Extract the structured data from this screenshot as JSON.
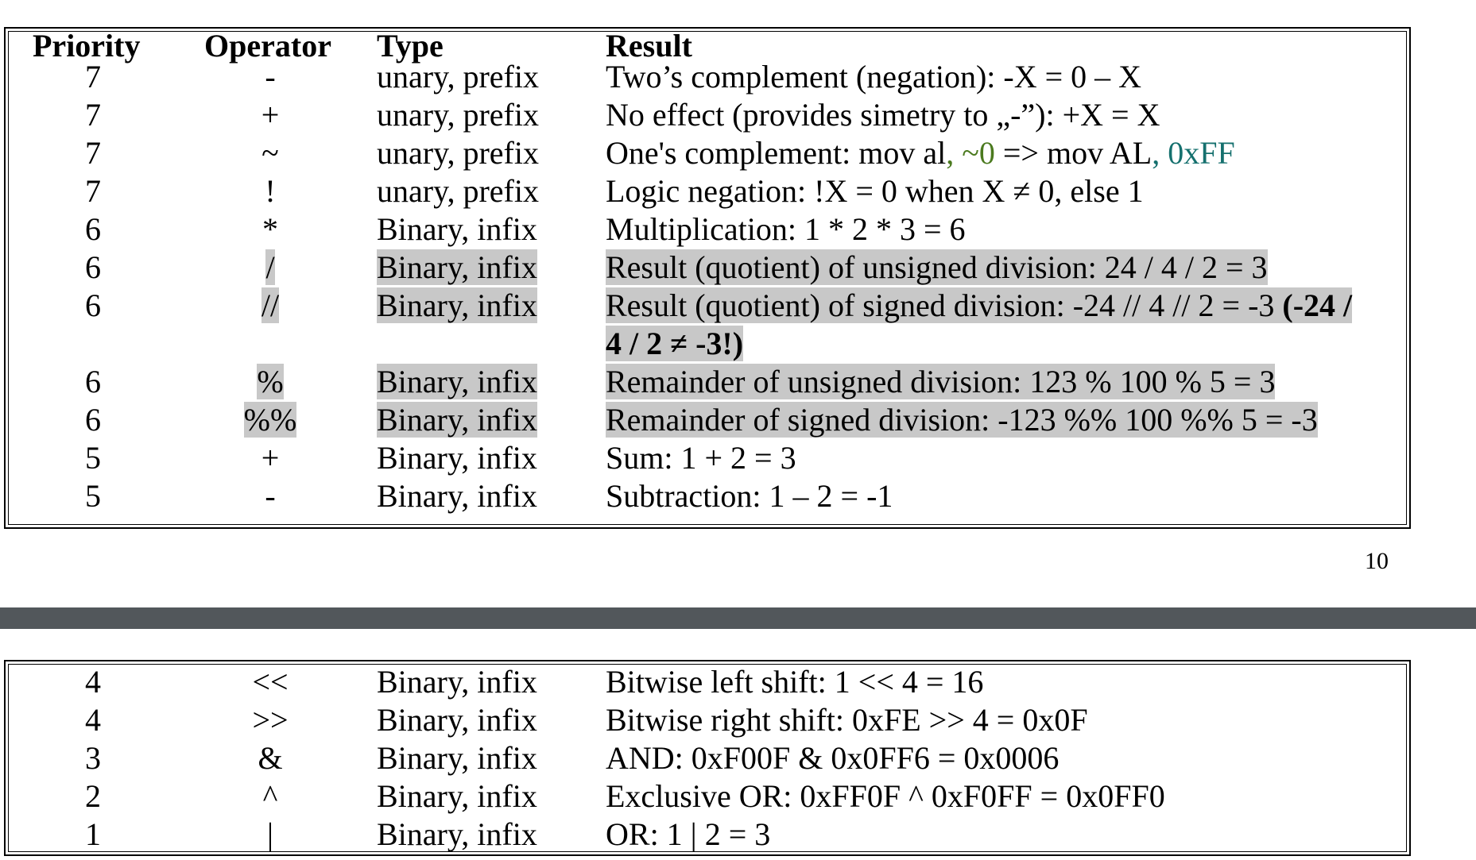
{
  "table": {
    "headers": {
      "priority": "Priority",
      "operator": "Operator",
      "type": "Type",
      "result": "Result"
    },
    "rows_page1": [
      {
        "priority": "7",
        "operator": "-",
        "type": "unary, prefix",
        "result": "Two’s complement (negation): -X = 0 – X"
      },
      {
        "priority": "7",
        "operator": "+",
        "type": "unary, prefix",
        "result": "No effect (provides simetry to „-”): +X = X"
      },
      {
        "priority": "7",
        "operator": "~",
        "type": "unary, prefix",
        "result_parts": [
          "One's complement: mov al",
          ", ~0",
          " => mov AL",
          ", 0xFF"
        ]
      },
      {
        "priority": "7",
        "operator": "!",
        "type": "unary, prefix",
        "result": "Logic negation: !X = 0 when X ≠ 0, else 1"
      },
      {
        "priority": "6",
        "operator": "*",
        "type": "Binary, infix",
        "result": "Multiplication: 1 * 2 * 3 = 6"
      },
      {
        "priority": "6",
        "operator": "/",
        "type": "Binary, infix",
        "result": "Result (quotient) of unsigned division: 24 / 4 / 2 = 3"
      },
      {
        "priority": "6",
        "operator": "//",
        "type": "Binary, infix",
        "result_line1": "Result (quotient) of signed division: -24 // 4 // 2 = -3 ",
        "result_line1_bold": "(-24 /",
        "result_line2_bold": "4 / 2 ≠ -3!)"
      },
      {
        "priority": "6",
        "operator": "%",
        "type": "Binary, infix",
        "result": "Remainder of unsigned division: 123 % 100 % 5 = 3"
      },
      {
        "priority": "6",
        "operator": "%%",
        "type": "Binary, infix",
        "result": "Remainder of signed division: -123 %% 100 %% 5 = -3"
      },
      {
        "priority": "5",
        "operator": "+",
        "type": "Binary, infix",
        "result": "Sum: 1 + 2 = 3"
      },
      {
        "priority": "5",
        "operator": "-",
        "type": "Binary, infix",
        "result": "Subtraction: 1 – 2 = -1"
      }
    ],
    "rows_page2": [
      {
        "priority": "4",
        "operator": "<<",
        "type": "Binary, infix",
        "result": "Bitwise left shift: 1 << 4 = 16"
      },
      {
        "priority": "4",
        "operator": ">>",
        "type": "Binary, infix",
        "result": "Bitwise right shift: 0xFE >> 4 = 0x0F"
      },
      {
        "priority": "3",
        "operator": "&",
        "type": "Binary, infix",
        "result": "AND: 0xF00F & 0x0FF6 = 0x0006"
      },
      {
        "priority": "2",
        "operator": "^",
        "type": "Binary, infix",
        "result": "Exclusive OR: 0xFF0F ^ 0xF0FF = 0x0FF0"
      },
      {
        "priority": "1",
        "operator": "|",
        "type": "Binary, infix",
        "result": "OR: 1 | 2 = 3"
      }
    ]
  },
  "page_number": "10",
  "colors": {
    "highlight": "#c8c8c8",
    "green_code": "#4b7a1f",
    "teal_code": "#15706e",
    "page_gap": "#52575b"
  }
}
